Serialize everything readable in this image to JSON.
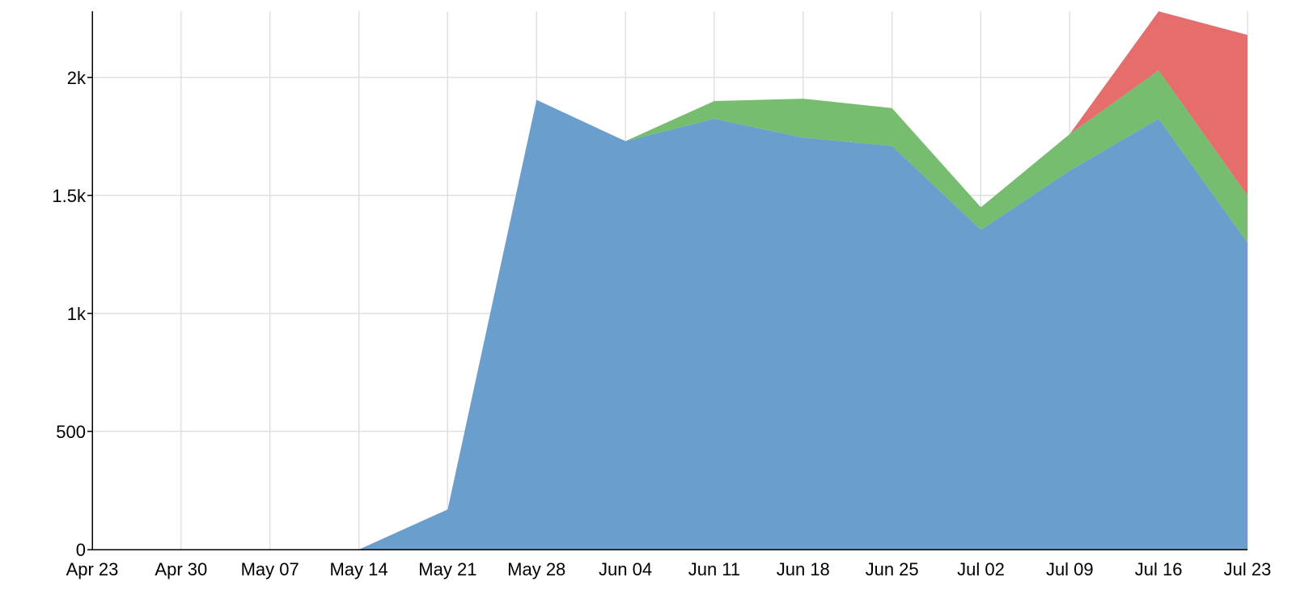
{
  "chart_data": {
    "type": "area",
    "stacked": true,
    "title": "",
    "xlabel": "",
    "ylabel": "",
    "x": [
      "Apr 23",
      "Apr 30",
      "May 07",
      "May 14",
      "May 21",
      "May 28",
      "Jun 04",
      "Jun 11",
      "Jun 18",
      "Jun 25",
      "Jul 02",
      "Jul 09",
      "Jul 16",
      "Jul 23"
    ],
    "x_tick_labels": [
      "Apr 23",
      "Apr 30",
      "May 07",
      "May 14",
      "May 21",
      "May 28",
      "Jun 04",
      "Jun 11",
      "Jun 18",
      "Jun 25",
      "Jul 02",
      "Jul 09",
      "Jul 16",
      "Jul 23"
    ],
    "y_ticks": [
      0,
      500,
      1000,
      1500,
      2000
    ],
    "y_tick_labels": [
      "0",
      "500",
      "1k",
      "1.5k",
      "2k"
    ],
    "ylim": [
      0,
      2280
    ],
    "grid": true,
    "legend": "none",
    "series": [
      {
        "color": "#6a9fcd",
        "values": [
          0,
          0,
          0,
          0,
          170,
          1905,
          1730,
          1825,
          1745,
          1710,
          1355,
          1605,
          1825,
          1300
        ]
      },
      {
        "color": "#77bd6f",
        "values": [
          0,
          0,
          0,
          0,
          0,
          0,
          0,
          75,
          165,
          160,
          95,
          155,
          205,
          200
        ]
      },
      {
        "color": "#e56d6b",
        "values": [
          0,
          0,
          0,
          0,
          0,
          0,
          0,
          0,
          0,
          0,
          0,
          0,
          250,
          680
        ]
      }
    ]
  }
}
